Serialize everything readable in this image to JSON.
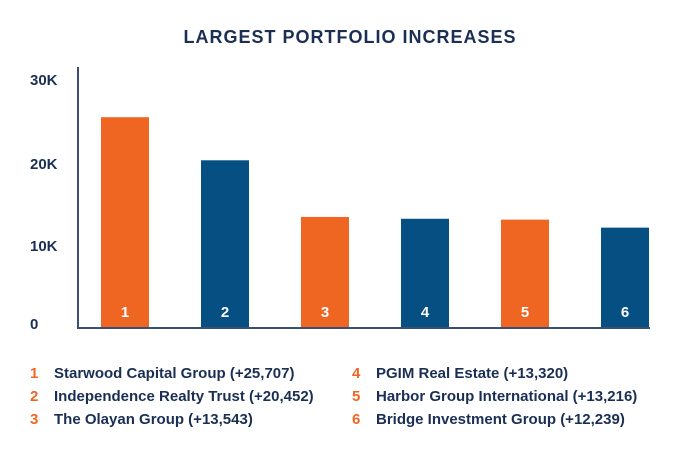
{
  "chart_data": {
    "type": "bar",
    "title": "LARGEST PORTFOLIO INCREASES",
    "xlabel": "",
    "ylabel": "",
    "ylim": [
      0,
      30000
    ],
    "yticks": [
      0,
      10000,
      20000,
      30000
    ],
    "ytick_labels": [
      "0",
      "10K",
      "20K",
      "30K"
    ],
    "grid": false,
    "categories": [
      "1",
      "2",
      "3",
      "4",
      "5",
      "6"
    ],
    "values": [
      25707,
      20452,
      13543,
      13320,
      13216,
      12239
    ],
    "bar_colors": [
      "#ef6623",
      "#054f82",
      "#ef6623",
      "#054f82",
      "#ef6623",
      "#054f82"
    ],
    "legend": [
      {
        "num": "1",
        "text": "Starwood Capital Group (+25,707)"
      },
      {
        "num": "2",
        "text": "Independence Realty Trust (+20,452)"
      },
      {
        "num": "3",
        "text": "The Olayan Group (+13,543)"
      },
      {
        "num": "4",
        "text": "PGIM Real Estate (+13,320)"
      },
      {
        "num": "5",
        "text": "Harbor Group International (+13,216)"
      },
      {
        "num": "6",
        "text": "Bridge Investment Group (+12,239)"
      }
    ]
  },
  "colors": {
    "orange": "#ef6623",
    "blue": "#054f82",
    "navy": "#1b2f55",
    "axis": "#3b4f74"
  }
}
